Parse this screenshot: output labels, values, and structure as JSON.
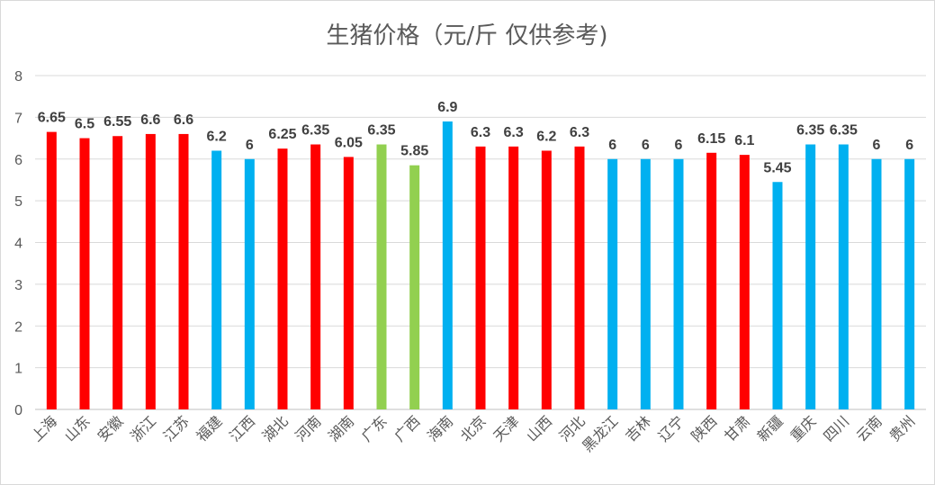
{
  "chart_data": {
    "type": "bar",
    "title": "生猪价格（元/斤 仅供参考)",
    "xlabel": "",
    "ylabel": "",
    "ylim": [
      0,
      8
    ],
    "yticks": [
      0,
      1,
      2,
      3,
      4,
      5,
      6,
      7,
      8
    ],
    "grid": true,
    "legend": "none",
    "categories": [
      "上海",
      "山东",
      "安徽",
      "浙江",
      "江苏",
      "福建",
      "江西",
      "湖北",
      "河南",
      "湖南",
      "广东",
      "广西",
      "海南",
      "北京",
      "天津",
      "山西",
      "河北",
      "黑龙江",
      "吉林",
      "辽宁",
      "陕西",
      "甘肃",
      "新疆",
      "重庆",
      "四川",
      "云南",
      "贵州"
    ],
    "values": [
      6.65,
      6.5,
      6.55,
      6.6,
      6.6,
      6.2,
      6,
      6.25,
      6.35,
      6.05,
      6.35,
      5.85,
      6.9,
      6.3,
      6.3,
      6.2,
      6.3,
      6,
      6,
      6,
      6.15,
      6.1,
      5.45,
      6.35,
      6.35,
      6,
      6
    ],
    "value_labels": [
      "6.65",
      "6.5",
      "6.55",
      "6.6",
      "6.6",
      "6.2",
      "6",
      "6.25",
      "6.35",
      "6.05",
      "6.35",
      "5.85",
      "6.9",
      "6.3",
      "6.3",
      "6.2",
      "6.3",
      "6",
      "6",
      "6",
      "6.15",
      "6.1",
      "5.45",
      "6.35",
      "6.35",
      "6",
      "6"
    ],
    "bar_colors": [
      "#ff0000",
      "#ff0000",
      "#ff0000",
      "#ff0000",
      "#ff0000",
      "#00b0f0",
      "#00b0f0",
      "#ff0000",
      "#ff0000",
      "#ff0000",
      "#92d050",
      "#92d050",
      "#00b0f0",
      "#ff0000",
      "#ff0000",
      "#ff0000",
      "#ff0000",
      "#00b0f0",
      "#00b0f0",
      "#00b0f0",
      "#ff0000",
      "#ff0000",
      "#00b0f0",
      "#00b0f0",
      "#00b0f0",
      "#00b0f0",
      "#00b0f0"
    ]
  }
}
